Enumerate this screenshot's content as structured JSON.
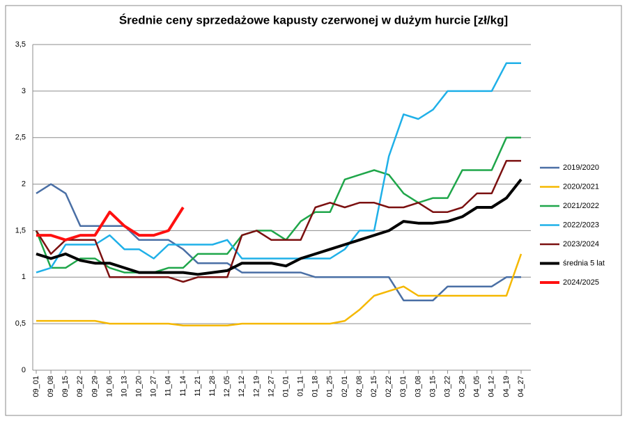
{
  "chart_data": {
    "type": "line",
    "title": "Średnie ceny sprzedażowe kapusty czerwonej w dużym hurcie [zł/kg]",
    "categories": [
      "09_01",
      "09_08",
      "09_15",
      "09_22",
      "09_29",
      "10_06",
      "10_13",
      "10_20",
      "10_27",
      "11_04",
      "11_14",
      "11_21",
      "11_28",
      "12_05",
      "12_12",
      "12_19",
      "12_27",
      "01_01",
      "01_11",
      "01_18",
      "01_25",
      "02_01",
      "02_08",
      "02_15",
      "02_22",
      "03_01",
      "03_08",
      "03_15",
      "03_22",
      "03_29",
      "04_05",
      "04_12",
      "04_19",
      "04_27"
    ],
    "series": [
      {
        "name": "2019/2020",
        "color": "#4a6fa5",
        "values": [
          1.9,
          2.0,
          1.9,
          1.55,
          1.55,
          1.55,
          1.55,
          1.4,
          1.4,
          1.4,
          1.3,
          1.15,
          1.15,
          1.15,
          1.05,
          1.05,
          1.05,
          1.05,
          1.05,
          1.0,
          1.0,
          1.0,
          1.0,
          1.0,
          1.0,
          0.75,
          0.75,
          0.75,
          0.9,
          0.9,
          0.9,
          0.9,
          1.0,
          1.0
        ]
      },
      {
        "name": "2020/2021",
        "color": "#f5b800",
        "values": [
          0.53,
          0.53,
          0.53,
          0.53,
          0.53,
          0.5,
          0.5,
          0.5,
          0.5,
          0.5,
          0.48,
          0.48,
          0.48,
          0.48,
          0.5,
          0.5,
          0.5,
          0.5,
          0.5,
          0.5,
          0.5,
          0.53,
          0.65,
          0.8,
          0.85,
          0.9,
          0.8,
          0.8,
          0.8,
          0.8,
          0.8,
          0.8,
          0.8,
          1.25
        ]
      },
      {
        "name": "2021/2022",
        "color": "#1fa64a",
        "values": [
          1.5,
          1.1,
          1.1,
          1.2,
          1.2,
          1.1,
          1.05,
          1.05,
          1.05,
          1.1,
          1.1,
          1.25,
          1.25,
          1.25,
          1.45,
          1.5,
          1.5,
          1.4,
          1.6,
          1.7,
          1.7,
          2.05,
          2.1,
          2.15,
          2.1,
          1.9,
          1.8,
          1.85,
          1.85,
          2.15,
          2.15,
          2.15,
          2.5,
          2.5
        ]
      },
      {
        "name": "2022/2023",
        "color": "#1fb0e8",
        "values": [
          1.05,
          1.1,
          1.35,
          1.35,
          1.35,
          1.45,
          1.3,
          1.3,
          1.2,
          1.35,
          1.35,
          1.35,
          1.35,
          1.4,
          1.2,
          1.2,
          1.2,
          1.2,
          1.2,
          1.2,
          1.2,
          1.3,
          1.5,
          1.5,
          2.3,
          2.75,
          2.7,
          2.8,
          3.0,
          3.0,
          3.0,
          3.0,
          3.3,
          3.3
        ]
      },
      {
        "name": "2023/2024",
        "color": "#7b1010",
        "values": [
          1.5,
          1.25,
          1.4,
          1.4,
          1.4,
          1.0,
          1.0,
          1.0,
          1.0,
          1.0,
          0.95,
          1.0,
          1.0,
          1.0,
          1.45,
          1.5,
          1.4,
          1.4,
          1.4,
          1.75,
          1.8,
          1.75,
          1.8,
          1.8,
          1.75,
          1.75,
          1.8,
          1.7,
          1.7,
          1.75,
          1.9,
          1.9,
          2.25,
          2.25
        ]
      },
      {
        "name": "średnia 5 lat",
        "color": "#000000",
        "values": [
          1.25,
          1.2,
          1.25,
          1.18,
          1.15,
          1.15,
          1.1,
          1.05,
          1.05,
          1.05,
          1.05,
          1.03,
          1.05,
          1.07,
          1.15,
          1.15,
          1.15,
          1.12,
          1.2,
          1.25,
          1.3,
          1.35,
          1.4,
          1.45,
          1.5,
          1.6,
          1.58,
          1.58,
          1.6,
          1.65,
          1.75,
          1.75,
          1.85,
          2.05
        ]
      },
      {
        "name": "2024/2025",
        "color": "#ff1010",
        "values": [
          1.45,
          1.45,
          1.4,
          1.45,
          1.45,
          1.7,
          1.55,
          1.45,
          1.45,
          1.5,
          1.75,
          null,
          null,
          null,
          null,
          null,
          null,
          null,
          null,
          null,
          null,
          null,
          null,
          null,
          null,
          null,
          null,
          null,
          null,
          null,
          null,
          null,
          null,
          null
        ]
      }
    ],
    "ylim": [
      0,
      3.5
    ],
    "yticks": [
      0,
      {
        "value": 0.5,
        "label": "0,5"
      },
      1,
      {
        "value": 1.5,
        "label": "1,5"
      },
      2,
      {
        "value": 2.5,
        "label": "2,5"
      },
      3,
      {
        "value": 3.5,
        "label": "3,5"
      }
    ],
    "grid": true,
    "legend": "right"
  }
}
